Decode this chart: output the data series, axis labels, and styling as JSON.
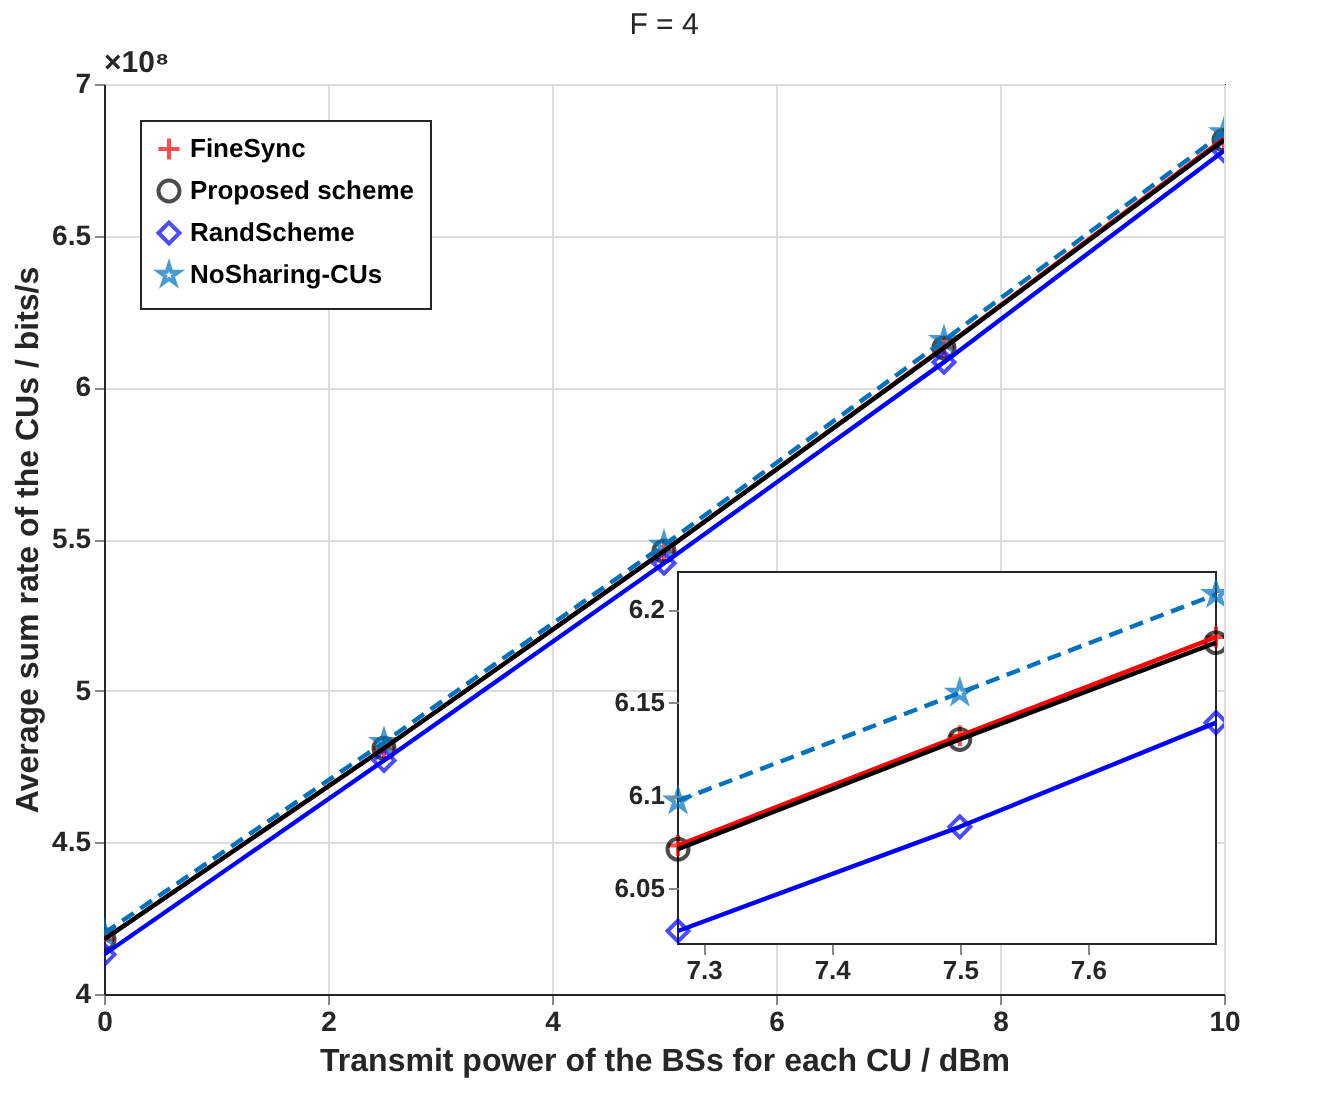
{
  "chart_data": [
    {
      "type": "line",
      "title": "F = 4",
      "xlabel": "Transmit power of the BSs for each CU / dBm",
      "ylabel": "Average sum rate of the CUs / bits/s",
      "annotations": [
        "×10⁸"
      ],
      "x": [
        0,
        2.5,
        5,
        7.5,
        10
      ],
      "xlim": [
        0,
        10
      ],
      "xticks": [
        0,
        2,
        4,
        6,
        8,
        10
      ],
      "ylim": [
        4,
        7
      ],
      "yticks": [
        4,
        4.5,
        5,
        5.5,
        6,
        6.5,
        7
      ],
      "grid": true,
      "legend": "top left",
      "series": [
        {
          "name": "FineSync",
          "color": "#ff0000",
          "marker": "cross",
          "line_style": "solid",
          "values": [
            4.18,
            4.81,
            5.46,
            6.132,
            6.82
          ]
        },
        {
          "name": "Proposed scheme",
          "color": "#000000",
          "marker": "circle",
          "line_style": "solid",
          "values": [
            4.18,
            4.81,
            5.46,
            6.13,
            6.815
          ]
        },
        {
          "name": "RandScheme",
          "color": "#0000ff",
          "marker": "diamond",
          "line_style": "solid",
          "values": [
            4.13,
            4.77,
            5.42,
            6.083,
            6.78
          ]
        },
        {
          "name": "NoSharing-CUs",
          "color": "#0072bd",
          "marker": "star",
          "line_style": "dashed",
          "values": [
            4.2,
            4.83,
            5.48,
            6.155,
            6.84
          ]
        }
      ]
    },
    {
      "type": "line",
      "x": [
        7.28,
        7.5,
        7.7
      ],
      "xlim": [
        7.28,
        7.7
      ],
      "xticks": [
        7.3,
        7.4,
        7.5,
        7.6
      ],
      "ylim": [
        6.02,
        6.22
      ],
      "yticks": [
        6.05,
        6.1,
        6.15,
        6.2
      ],
      "grid": false,
      "series": [
        {
          "color": "#ff0000",
          "marker": "cross",
          "line_style": "solid",
          "values": [
            6.073,
            6.132,
            6.185
          ]
        },
        {
          "color": "#000000",
          "marker": "circle",
          "line_style": "solid",
          "values": [
            6.071,
            6.13,
            6.182
          ]
        },
        {
          "color": "#0000ff",
          "marker": "diamond",
          "line_style": "solid",
          "values": [
            6.027,
            6.083,
            6.139
          ]
        },
        {
          "color": "#0072bd",
          "marker": "star",
          "line_style": "dashed",
          "values": [
            6.097,
            6.155,
            6.208
          ]
        }
      ]
    }
  ]
}
